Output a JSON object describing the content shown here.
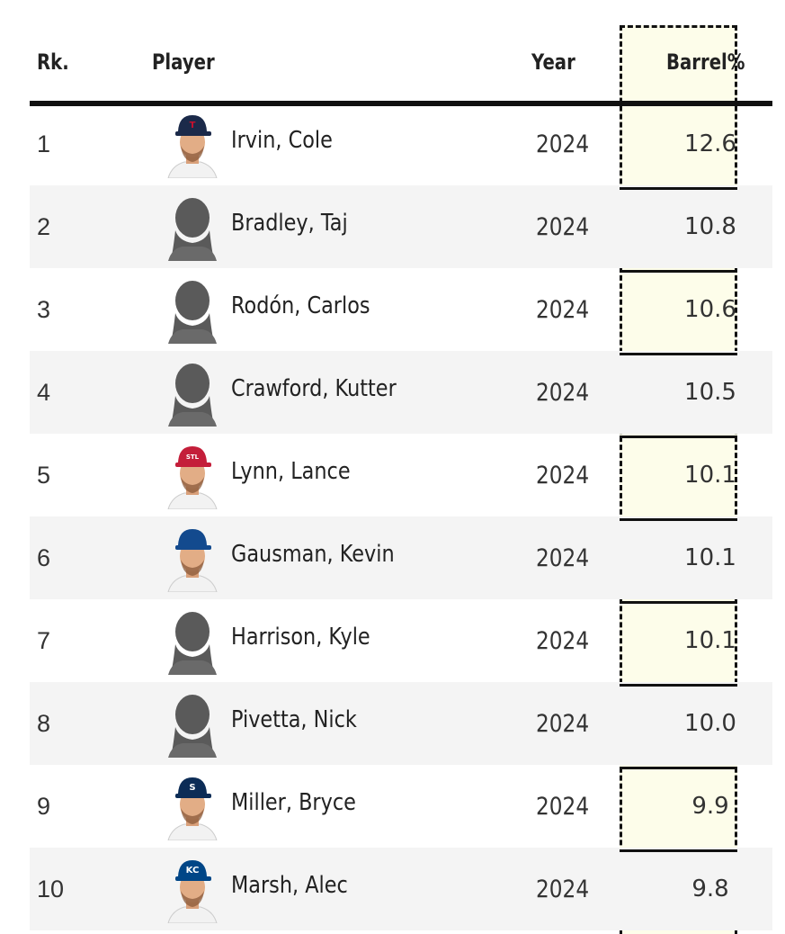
{
  "table": {
    "headers": {
      "rank": "Rk.",
      "player": "Player",
      "year": "Year",
      "barrel": "Barrel%"
    },
    "rows": [
      {
        "rank": "1",
        "player": "Irvin, Cole",
        "year": "2024",
        "barrel": "12.6",
        "avatar": "photo",
        "cap": "#1b2a4a",
        "logo": "T",
        "logo_color": "#c8102e"
      },
      {
        "rank": "2",
        "player": "Bradley, Taj",
        "year": "2024",
        "barrel": "10.8",
        "avatar": "silhouette"
      },
      {
        "rank": "3",
        "player": "Rodón, Carlos",
        "year": "2024",
        "barrel": "10.6",
        "avatar": "silhouette"
      },
      {
        "rank": "4",
        "player": "Crawford, Kutter",
        "year": "2024",
        "barrel": "10.5",
        "avatar": "silhouette"
      },
      {
        "rank": "5",
        "player": "Lynn, Lance",
        "year": "2024",
        "barrel": "10.1",
        "avatar": "photo",
        "cap": "#c41e3a",
        "logo": "STL",
        "logo_color": "#ffffff"
      },
      {
        "rank": "6",
        "player": "Gausman, Kevin",
        "year": "2024",
        "barrel": "10.1",
        "avatar": "photo",
        "cap": "#134a8e",
        "logo": "",
        "logo_color": "#ffffff"
      },
      {
        "rank": "7",
        "player": "Harrison, Kyle",
        "year": "2024",
        "barrel": "10.1",
        "avatar": "silhouette"
      },
      {
        "rank": "8",
        "player": "Pivetta, Nick",
        "year": "2024",
        "barrel": "10.0",
        "avatar": "silhouette"
      },
      {
        "rank": "9",
        "player": "Miller, Bryce",
        "year": "2024",
        "barrel": "9.9",
        "avatar": "photo",
        "cap": "#0c2c56",
        "logo": "S",
        "logo_color": "#ffffff"
      },
      {
        "rank": "10",
        "player": "Marsh, Alec",
        "year": "2024",
        "barrel": "9.8",
        "avatar": "photo",
        "cap": "#004687",
        "logo": "KC",
        "logo_color": "#ffffff"
      }
    ]
  }
}
